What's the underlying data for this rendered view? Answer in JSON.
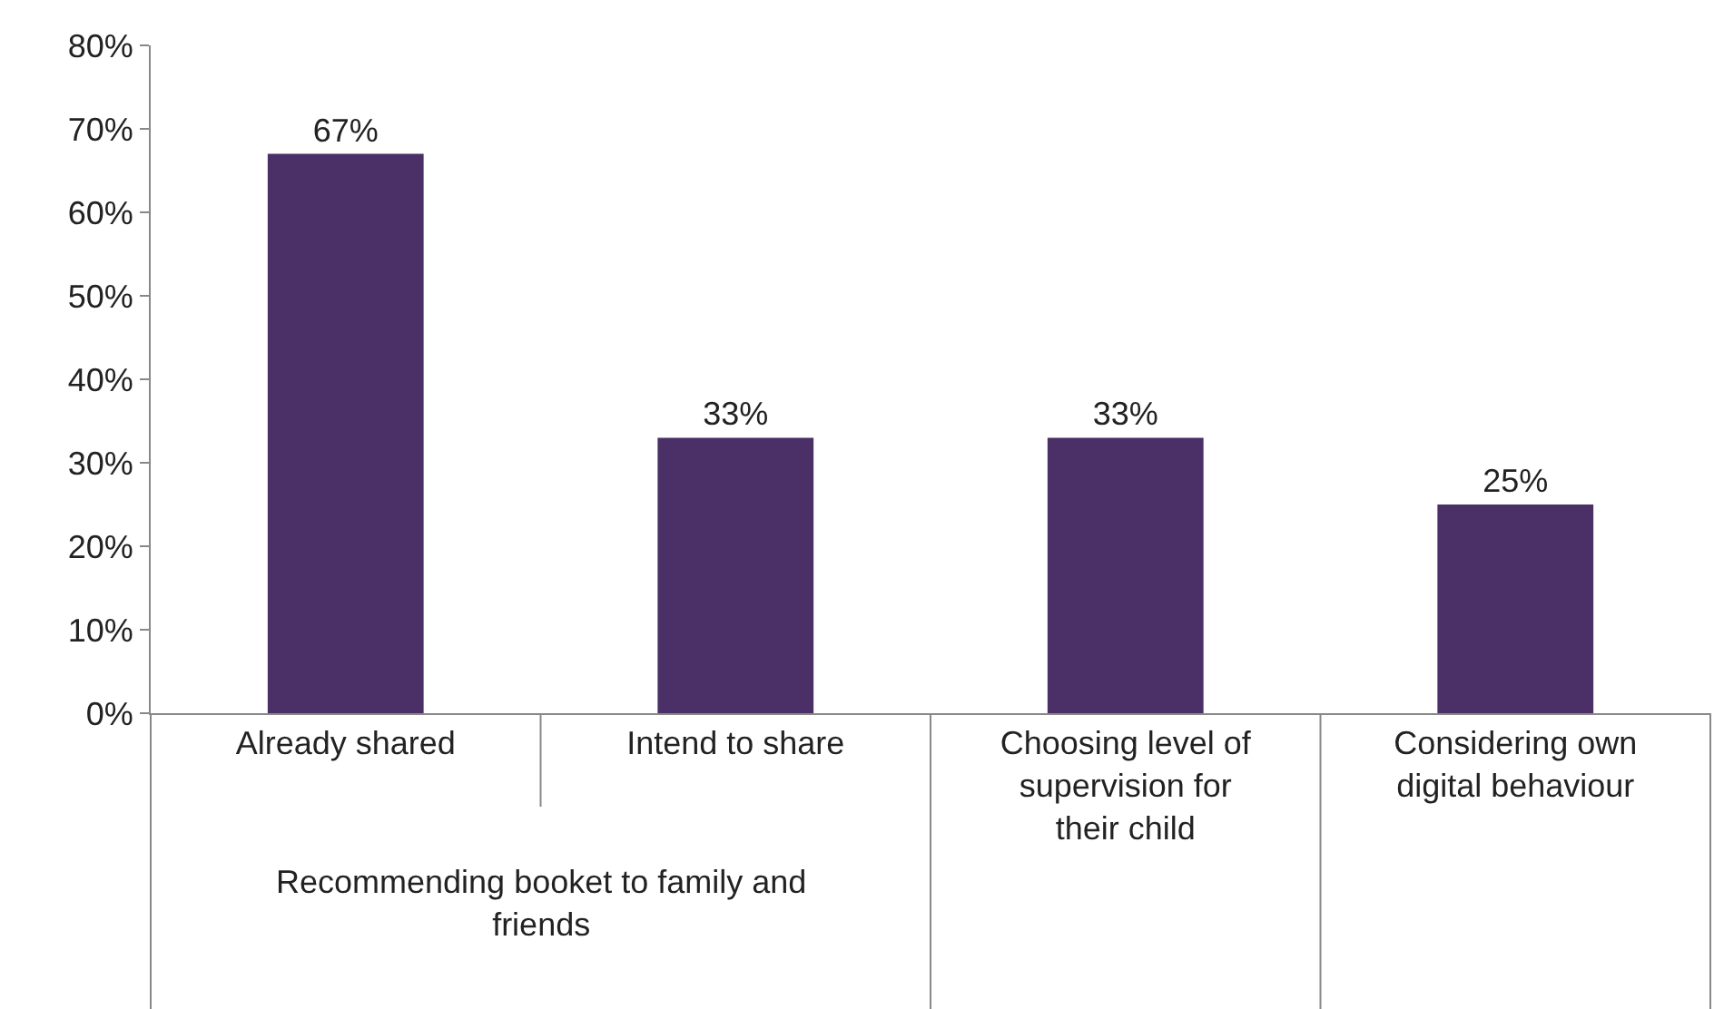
{
  "chart_data": {
    "type": "bar",
    "categories": [
      "Already shared",
      "Intend to share",
      "Choosing level of supervision for their child",
      "Considering own digital behaviour"
    ],
    "values": [
      67,
      33,
      33,
      25
    ],
    "value_labels": [
      "67%",
      "33%",
      "33%",
      "25%"
    ],
    "color": "#4a3066",
    "ylim": [
      0,
      80
    ],
    "yticks": [
      {
        "value": 0,
        "label": "0%"
      },
      {
        "value": 10,
        "label": "10%"
      },
      {
        "value": 20,
        "label": "20%"
      },
      {
        "value": 30,
        "label": "30%"
      },
      {
        "value": 40,
        "label": "40%"
      },
      {
        "value": 50,
        "label": "50%"
      },
      {
        "value": 60,
        "label": "60%"
      },
      {
        "value": 70,
        "label": "70%"
      },
      {
        "value": 80,
        "label": "80%"
      }
    ],
    "annotations": [
      "Recommending booket to family and friends"
    ],
    "legend": false
  }
}
